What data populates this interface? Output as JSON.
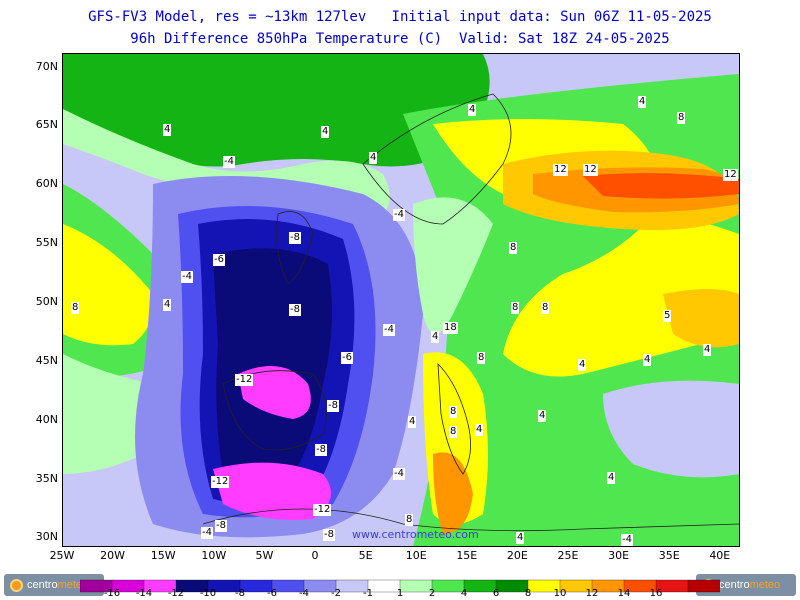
{
  "title_line1": "GFS-FV3 Model, res = ~13km 127lev   Initial input data: Sun 06Z 11-05-2025",
  "title_line2": "96h Difference 850hPa Temperature (C)  Valid: Sat 18Z 24-05-2025",
  "lat_labels": [
    "70N",
    "65N",
    "60N",
    "55N",
    "50N",
    "45N",
    "40N",
    "35N",
    "30N"
  ],
  "lon_labels": [
    "25W",
    "20W",
    "15W",
    "10W",
    "5W",
    "0",
    "5E",
    "10E",
    "15E",
    "20E",
    "25E",
    "30E",
    "35E",
    "40E"
  ],
  "contour_labels": [
    {
      "text": "4"
    },
    {
      "text": "4"
    },
    {
      "text": "4"
    },
    {
      "text": "4"
    },
    {
      "text": "-4"
    },
    {
      "text": "4"
    },
    {
      "text": "8"
    },
    {
      "text": "12"
    },
    {
      "text": "12"
    },
    {
      "text": "12"
    },
    {
      "text": "-4"
    },
    {
      "text": "-8"
    },
    {
      "text": "-6"
    },
    {
      "text": "8"
    },
    {
      "text": "-4"
    },
    {
      "text": "4"
    },
    {
      "text": "8"
    },
    {
      "text": "-8"
    },
    {
      "text": "8"
    },
    {
      "text": "8"
    },
    {
      "text": "5"
    },
    {
      "text": "-4"
    },
    {
      "text": "4"
    },
    {
      "text": "18"
    },
    {
      "text": "-6"
    },
    {
      "text": "4"
    },
    {
      "text": "4"
    },
    {
      "text": "-12"
    },
    {
      "text": "-8"
    },
    {
      "text": "4"
    },
    {
      "text": "8"
    },
    {
      "text": "4"
    },
    {
      "text": "-8"
    },
    {
      "text": "-12"
    },
    {
      "text": "-12"
    },
    {
      "text": "-4"
    },
    {
      "text": "-8"
    },
    {
      "text": "-4"
    },
    {
      "text": "8"
    },
    {
      "text": "4"
    },
    {
      "text": "-4"
    },
    {
      "text": "-8"
    },
    {
      "text": "8"
    },
    {
      "text": "4"
    },
    {
      "text": "4"
    },
    {
      "text": "8"
    },
    {
      "text": "4"
    }
  ],
  "watermark": "www.centrometeo.com",
  "logo_left": {
    "part1": "centro",
    "part2": "meteo"
  },
  "logo_right": {
    "part1": "centro",
    "part2": "meteo"
  },
  "colorbar": {
    "labels": [
      "-16",
      "-14",
      "-12",
      "-10",
      "-8",
      "-6",
      "-4",
      "-2",
      "-1",
      "1",
      "2",
      "4",
      "6",
      "8",
      "10",
      "12",
      "14",
      "16"
    ],
    "colors": [
      "#a0009c",
      "#d800d8",
      "#ff3cff",
      "#0a0a78",
      "#1414b4",
      "#2828dc",
      "#5050f0",
      "#8c8cf0",
      "#c8c8f8",
      "#ffffff",
      "#b4ffb4",
      "#50e650",
      "#14b414",
      "#008c00",
      "#ffff00",
      "#ffc800",
      "#ff9600",
      "#ff5000",
      "#e61414",
      "#b40000"
    ]
  }
}
